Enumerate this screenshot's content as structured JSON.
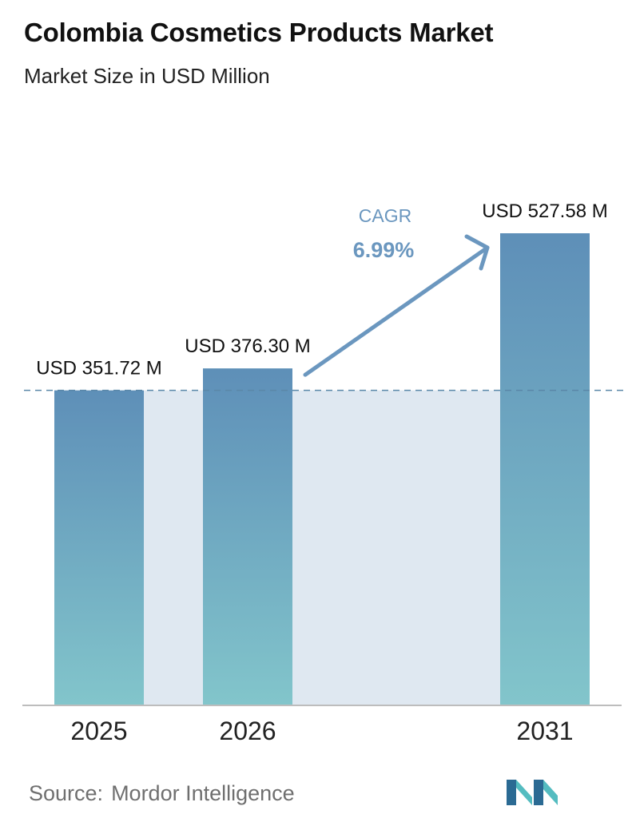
{
  "header": {
    "title": "Colombia Cosmetics Products Market",
    "subtitle": "Market Size in USD Million"
  },
  "chart_data": {
    "type": "bar",
    "title": "Colombia Cosmetics Products Market",
    "subtitle": "Market Size in USD Million",
    "categories": [
      "2025",
      "2026",
      "2031"
    ],
    "values": [
      351.72,
      376.3,
      527.58
    ],
    "data_labels": [
      "USD 351.72 M",
      "USD 376.30 M",
      "USD 527.58 M"
    ],
    "unit": "USD Million",
    "ylim": [
      0,
      560
    ],
    "grid": false,
    "legend": "none",
    "annotations": {
      "cagr_label": "CAGR",
      "cagr_value": "6.99%"
    },
    "colors": {
      "bar_top": "#5e8fb8",
      "bar_bottom": "#82c5cb",
      "band": "#dfe8f1",
      "arrow": "#6b97bf",
      "cagr_text": "#6b97bf",
      "dashed_line": "#5a87a8",
      "axis": "#bdbdbd"
    }
  },
  "footer": {
    "source_label": "Source:",
    "source_name": "Mordor Intelligence",
    "logo_icon": "mordor-intelligence-logo-icon",
    "logo_colors": [
      "#2b6a93",
      "#54bcc0"
    ]
  }
}
